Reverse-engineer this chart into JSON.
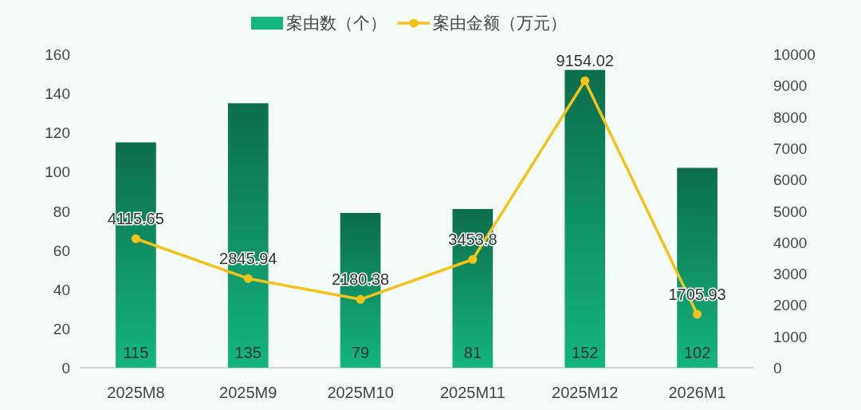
{
  "chart_data": {
    "type": "bar",
    "categories": [
      "2025M8",
      "2025M9",
      "2025M10",
      "2025M11",
      "2025M12",
      "2026M1"
    ],
    "series": [
      {
        "name": "案由数（个）",
        "color": "#14b57e",
        "values": [
          115,
          135,
          79,
          81,
          152,
          102
        ]
      },
      {
        "name": "案由金额（万元）",
        "type": "line",
        "axis": "y2",
        "color": "#f2c318",
        "values": [
          4115.65,
          2845.94,
          2180.38,
          3453.8,
          9154.02,
          1705.93
        ]
      }
    ],
    "ylim": [
      0,
      160
    ],
    "yticks": [
      0,
      20,
      40,
      60,
      80,
      100,
      120,
      140,
      160
    ],
    "y2lim": [
      0,
      10000
    ],
    "y2ticks": [
      0,
      1000,
      2000,
      3000,
      4000,
      5000,
      6000,
      7000,
      8000,
      9000,
      10000
    ],
    "data_labels": true,
    "legend": "top",
    "marker": "circle",
    "grid": false
  }
}
